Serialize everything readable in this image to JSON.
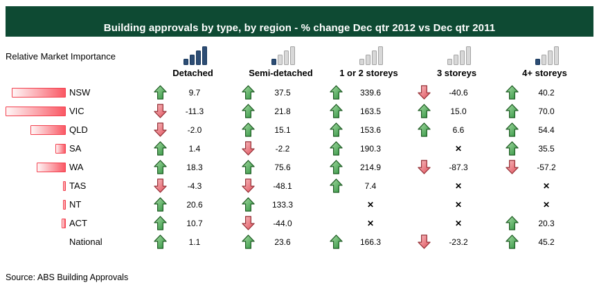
{
  "header": {
    "title": "Building approvals by type, by region - % change Dec qtr 2012 vs Dec qtr 2011",
    "bar_color": "#0e4a33"
  },
  "labels": {
    "relative_market_importance": "Relative Market Importance",
    "source": "Source: ABS Building Approvals"
  },
  "icons": {
    "up_arrow": "green-up-arrow-icon",
    "down_arrow": "red-down-arrow-icon",
    "not_available": "✕"
  },
  "colors": {
    "title_bar_green": "#0e4a33",
    "up_arrow_green": "#3c9e3c",
    "down_arrow_red": "#e4555e",
    "importance_bar_red": "#fa5864",
    "mini_bar_navy": "#2d4d74",
    "mini_bar_gray": "#d8d8d8"
  },
  "columns": [
    {
      "label": "Detached",
      "mini_bars": [
        "navy",
        "navy",
        "navy",
        "navy"
      ]
    },
    {
      "label": "Semi-detached",
      "mini_bars": [
        "navy",
        "gray",
        "gray",
        "gray"
      ]
    },
    {
      "label": "1 or 2 storeys",
      "mini_bars": [
        "gray",
        "gray",
        "gray",
        "gray"
      ]
    },
    {
      "label": "3 storeys",
      "mini_bars": [
        "gray",
        "gray",
        "gray",
        "gray"
      ]
    },
    {
      "label": "4+ storeys",
      "mini_bars": [
        "navy",
        "gray",
        "gray",
        "gray"
      ]
    }
  ],
  "mini_bar_heights": [
    9,
    15,
    21,
    27
  ],
  "rows": [
    {
      "region": "NSW",
      "importance_width": 78,
      "cells": [
        {
          "dir": "up",
          "value": "9.7"
        },
        {
          "dir": "up",
          "value": "37.5"
        },
        {
          "dir": "up",
          "value": "339.6"
        },
        {
          "dir": "down",
          "value": "-40.6"
        },
        {
          "dir": "up",
          "value": "40.2"
        }
      ]
    },
    {
      "region": "VIC",
      "importance_width": 88,
      "cells": [
        {
          "dir": "down",
          "value": "-11.3"
        },
        {
          "dir": "up",
          "value": "21.8"
        },
        {
          "dir": "up",
          "value": "163.5"
        },
        {
          "dir": "up",
          "value": "15.0"
        },
        {
          "dir": "up",
          "value": "70.0"
        }
      ]
    },
    {
      "region": "QLD",
      "importance_width": 51,
      "cells": [
        {
          "dir": "down",
          "value": "-2.0"
        },
        {
          "dir": "up",
          "value": "15.1"
        },
        {
          "dir": "up",
          "value": "153.6"
        },
        {
          "dir": "up",
          "value": "6.6"
        },
        {
          "dir": "up",
          "value": "54.4"
        }
      ]
    },
    {
      "region": "SA",
      "importance_width": 15,
      "cells": [
        {
          "dir": "up",
          "value": "1.4"
        },
        {
          "dir": "down",
          "value": "-2.2"
        },
        {
          "dir": "up",
          "value": "190.3"
        },
        {
          "dir": "none",
          "value": "✕"
        },
        {
          "dir": "up",
          "value": "35.5"
        }
      ]
    },
    {
      "region": "WA",
      "importance_width": 42,
      "cells": [
        {
          "dir": "up",
          "value": "18.3"
        },
        {
          "dir": "up",
          "value": "75.6"
        },
        {
          "dir": "up",
          "value": "214.9"
        },
        {
          "dir": "down",
          "value": "-87.3"
        },
        {
          "dir": "down",
          "value": "-57.2"
        }
      ]
    },
    {
      "region": "TAS",
      "importance_width": 4,
      "cells": [
        {
          "dir": "down",
          "value": "-4.3"
        },
        {
          "dir": "down",
          "value": "-48.1"
        },
        {
          "dir": "up",
          "value": "7.4"
        },
        {
          "dir": "none",
          "value": "✕"
        },
        {
          "dir": "none",
          "value": "✕"
        }
      ]
    },
    {
      "region": "NT",
      "importance_width": 4,
      "cells": [
        {
          "dir": "up",
          "value": "20.6"
        },
        {
          "dir": "up",
          "value": "133.3"
        },
        {
          "dir": "none",
          "value": "✕"
        },
        {
          "dir": "none",
          "value": "✕"
        },
        {
          "dir": "none",
          "value": "✕"
        }
      ]
    },
    {
      "region": "ACT",
      "importance_width": 6,
      "cells": [
        {
          "dir": "up",
          "value": "10.7"
        },
        {
          "dir": "down",
          "value": "-44.0"
        },
        {
          "dir": "none",
          "value": "✕"
        },
        {
          "dir": "none",
          "value": "✕"
        },
        {
          "dir": "up",
          "value": "20.3"
        }
      ]
    },
    {
      "region": "National",
      "importance_width": 0,
      "cells": [
        {
          "dir": "up",
          "value": "1.1"
        },
        {
          "dir": "up",
          "value": "23.6"
        },
        {
          "dir": "up",
          "value": "166.3"
        },
        {
          "dir": "down",
          "value": "-23.2"
        },
        {
          "dir": "up",
          "value": "45.2"
        }
      ]
    }
  ],
  "chart_data": {
    "type": "table",
    "title": "Building approvals by type, by region - % change Dec qtr 2012 vs Dec qtr 2011",
    "columns": [
      "Detached",
      "Semi-detached",
      "1 or 2 storeys",
      "3 storeys",
      "4+ storeys"
    ],
    "rows": [
      "NSW",
      "VIC",
      "QLD",
      "SA",
      "WA",
      "TAS",
      "NT",
      "ACT",
      "National"
    ],
    "values_pct_change": [
      [
        9.7,
        37.5,
        339.6,
        -40.6,
        40.2
      ],
      [
        -11.3,
        21.8,
        163.5,
        15.0,
        70.0
      ],
      [
        -2.0,
        15.1,
        153.6,
        6.6,
        54.4
      ],
      [
        1.4,
        -2.2,
        190.3,
        null,
        35.5
      ],
      [
        18.3,
        75.6,
        214.9,
        -87.3,
        -57.2
      ],
      [
        -4.3,
        -48.1,
        7.4,
        null,
        null
      ],
      [
        20.6,
        133.3,
        null,
        null,
        null
      ],
      [
        10.7,
        -44.0,
        null,
        null,
        20.3
      ],
      [
        1.1,
        23.6,
        166.3,
        -23.2,
        45.2
      ]
    ],
    "relative_market_importance_bars": {
      "NSW": 0.89,
      "VIC": 1.0,
      "QLD": 0.58,
      "SA": 0.17,
      "WA": 0.48,
      "TAS": 0.04,
      "NT": 0.04,
      "ACT": 0.07,
      "National": 0
    },
    "column_importance_mini_bars_highlighted": {
      "Detached": 4,
      "Semi-detached": 1,
      "1 or 2 storeys": 0,
      "3 storeys": 0,
      "4+ storeys": 1
    },
    "legend_position": "none",
    "source": "Source: ABS Building Approvals"
  }
}
